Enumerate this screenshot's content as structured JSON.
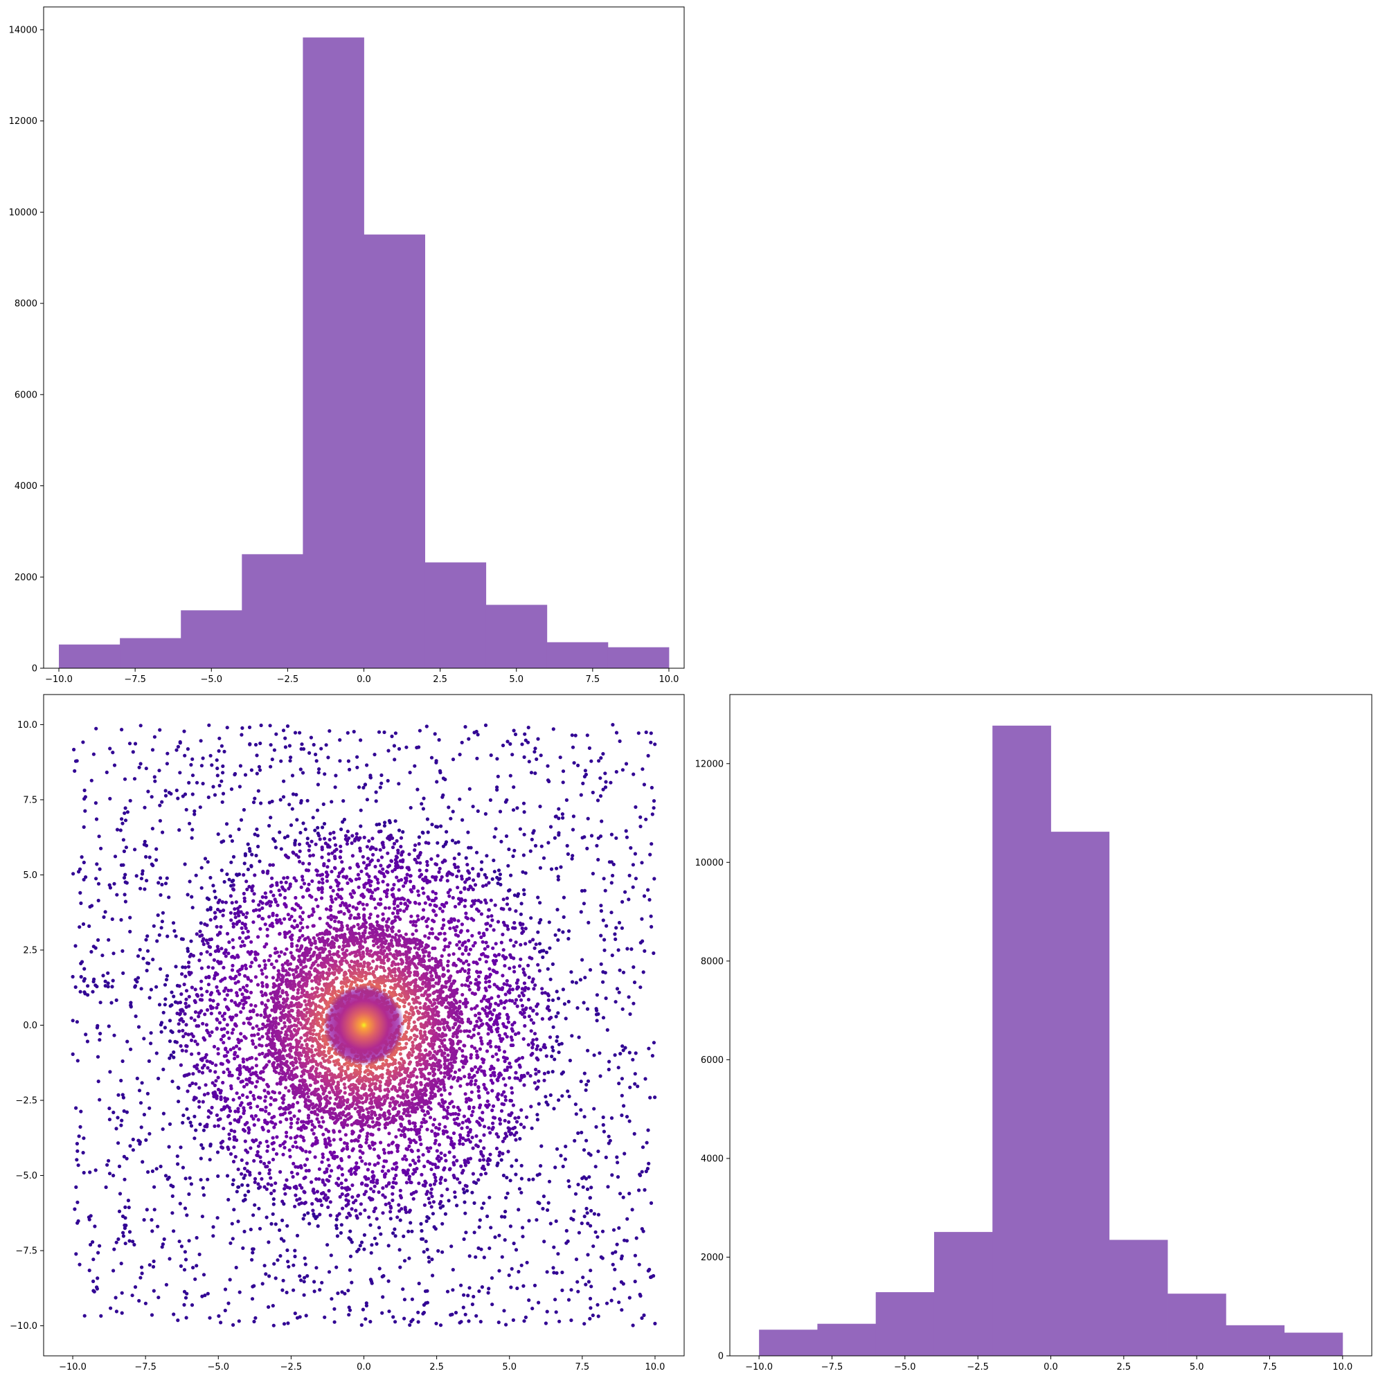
{
  "chart_data": [
    {
      "type": "bar",
      "panel": "top-left",
      "chart_kind": "histogram",
      "bin_edges": [
        -10,
        -8,
        -6,
        -4,
        -2,
        0,
        2,
        4,
        6,
        8,
        10
      ],
      "values": [
        520,
        660,
        1270,
        2500,
        13830,
        9510,
        2320,
        1390,
        570,
        460
      ],
      "xlim": [
        -10.5,
        10.5
      ],
      "ylim": [
        0,
        14500
      ],
      "xticks": [
        -10,
        -7.5,
        -5,
        -2.5,
        0,
        2.5,
        5,
        7.5,
        10
      ],
      "xtick_labels": [
        "−10.0",
        "−7.5",
        "−5.0",
        "−2.5",
        "0.0",
        "2.5",
        "5.0",
        "7.5",
        "10.0"
      ],
      "yticks": [
        0,
        2000,
        4000,
        6000,
        8000,
        10000,
        12000,
        14000
      ],
      "ytick_labels": [
        "0",
        "2000",
        "4000",
        "6000",
        "8000",
        "10000",
        "12000",
        "14000"
      ],
      "color": "#9467bd",
      "grid": false
    },
    {
      "type": "scatter",
      "panel": "bottom-left",
      "description": "Radially distributed points, color by local density (plasma colormap)",
      "x_range": [
        -10,
        10
      ],
      "y_range": [
        -10,
        10
      ],
      "xlim": [
        -11,
        11
      ],
      "ylim": [
        -11,
        11
      ],
      "xticks": [
        -10,
        -7.5,
        -5,
        -2.5,
        0,
        2.5,
        5,
        7.5,
        10
      ],
      "xtick_labels": [
        "−10.0",
        "−7.5",
        "−5.0",
        "−2.5",
        "0.0",
        "2.5",
        "5.0",
        "7.5",
        "10.0"
      ],
      "yticks": [
        -10,
        -7.5,
        -5,
        -2.5,
        0,
        2.5,
        5,
        7.5,
        10
      ],
      "ytick_labels": [
        "−10.0",
        "−7.5",
        "−5.0",
        "−2.5",
        "0.0",
        "2.5",
        "5.0",
        "7.5",
        "10.0"
      ],
      "colormap": [
        "#0d0887",
        "#6a00a8",
        "#b12a90",
        "#e16462",
        "#fca636",
        "#f0f921"
      ],
      "grid": false
    },
    {
      "type": "bar",
      "panel": "bottom-right",
      "chart_kind": "histogram",
      "bin_edges": [
        -10,
        -8,
        -6,
        -4,
        -2,
        0,
        2,
        4,
        6,
        8,
        10
      ],
      "values": [
        530,
        650,
        1290,
        2510,
        12770,
        10620,
        2350,
        1260,
        620,
        470
      ],
      "xlim": [
        -11,
        11
      ],
      "ylim": [
        0,
        13400
      ],
      "xticks": [
        -10,
        -7.5,
        -5,
        -2.5,
        0,
        2.5,
        5,
        7.5,
        10
      ],
      "xtick_labels": [
        "−10.0",
        "−7.5",
        "−5.0",
        "−2.5",
        "0.0",
        "2.5",
        "5.0",
        "7.5",
        "10.0"
      ],
      "yticks": [
        0,
        2000,
        4000,
        6000,
        8000,
        10000,
        12000
      ],
      "ytick_labels": [
        "0",
        "2000",
        "4000",
        "6000",
        "8000",
        "10000",
        "12000"
      ],
      "color": "#9467bd",
      "grid": false
    }
  ]
}
